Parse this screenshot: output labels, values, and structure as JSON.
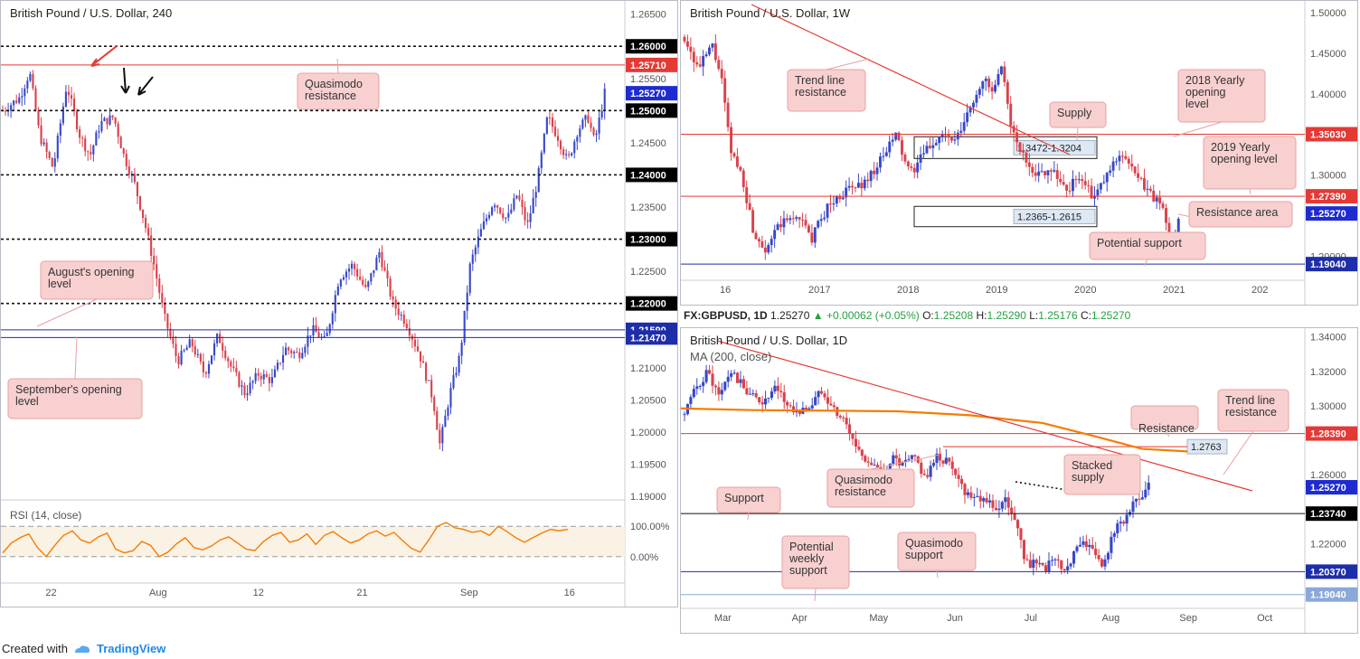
{
  "app": {
    "created_with": "Created with",
    "brand": "TradingView"
  },
  "colors": {
    "bull": "#3848c8",
    "bear": "#d8424c",
    "resistance_red": "#e53935",
    "blue_level": "#1e2da8",
    "rsi": "#f57c00",
    "ma": "#f57c00",
    "callout_fill": "#f8d0d0",
    "callout_stroke": "#e8a0a0"
  },
  "chart_data": [
    {
      "id": "h4",
      "type": "candlestick",
      "title": "British Pound / U.S. Dollar, 240",
      "x_ticks": [
        "22",
        "Aug",
        "12",
        "21",
        "Sep",
        "16"
      ],
      "y_ticks": [
        "1.26500",
        "1.25500",
        "1.24500",
        "1.23500",
        "1.22500",
        "1.21000",
        "1.20500",
        "1.20000",
        "1.19500",
        "1.19000"
      ],
      "ylim": [
        1.19,
        1.2665
      ],
      "levels": [
        {
          "value": 1.26,
          "label": "1.26000",
          "style": "dotted"
        },
        {
          "value": 1.2571,
          "label": "1.25710",
          "style": "red"
        },
        {
          "value": 1.2527,
          "label": "1.25270",
          "style": "price"
        },
        {
          "value": 1.25,
          "label": "1.25000",
          "style": "dotted"
        },
        {
          "value": 1.24,
          "label": "1.24000",
          "style": "dotted"
        },
        {
          "value": 1.23,
          "label": "1.23000",
          "style": "dotted"
        },
        {
          "value": 1.22,
          "label": "1.22000",
          "style": "dotted"
        },
        {
          "value": 1.2159,
          "label": "1.21590",
          "style": "blue"
        },
        {
          "value": 1.2147,
          "label": "1.21470",
          "style": "blue"
        }
      ],
      "annotations": [
        "Quasimodo resistance",
        "August's opening level",
        "September's opening level"
      ],
      "path": [
        [
          0,
          1.25
        ],
        [
          0.05,
          1.252
        ],
        [
          0.08,
          1.256
        ],
        [
          0.11,
          1.246
        ],
        [
          0.15,
          1.241
        ],
        [
          0.19,
          1.254
        ],
        [
          0.23,
          1.246
        ],
        [
          0.26,
          1.243
        ],
        [
          0.29,
          1.248
        ],
        [
          0.33,
          1.249
        ],
        [
          0.36,
          1.243
        ],
        [
          0.39,
          1.239
        ],
        [
          0.42,
          1.233
        ],
        [
          0.45,
          1.226
        ],
        [
          0.48,
          1.218
        ],
        [
          0.52,
          1.211
        ],
        [
          0.56,
          1.214
        ],
        [
          0.6,
          1.209
        ],
        [
          0.64,
          1.215
        ],
        [
          0.68,
          1.21
        ],
        [
          0.72,
          1.206
        ],
        [
          0.76,
          1.209
        ],
        [
          0.8,
          1.208
        ],
        [
          0.84,
          1.213
        ],
        [
          0.88,
          1.212
        ],
        [
          0.92,
          1.216
        ],
        [
          0.96,
          1.214
        ],
        [
          1.0,
          1.224
        ],
        [
          1.04,
          1.226
        ],
        [
          1.08,
          1.222
        ],
        [
          1.12,
          1.228
        ],
        [
          1.16,
          1.22
        ],
        [
          1.2,
          1.217
        ],
        [
          1.24,
          1.212
        ],
        [
          1.28,
          1.205
        ],
        [
          1.3,
          1.198
        ],
        [
          1.33,
          1.206
        ],
        [
          1.36,
          1.212
        ],
        [
          1.39,
          1.226
        ],
        [
          1.42,
          1.231
        ],
        [
          1.46,
          1.236
        ],
        [
          1.5,
          1.233
        ],
        [
          1.53,
          1.237
        ],
        [
          1.56,
          1.232
        ],
        [
          1.59,
          1.239
        ],
        [
          1.62,
          1.249
        ],
        [
          1.65,
          1.246
        ],
        [
          1.68,
          1.242
        ],
        [
          1.71,
          1.247
        ],
        [
          1.74,
          1.249
        ],
        [
          1.76,
          1.245
        ],
        [
          1.79,
          1.2527
        ]
      ],
      "x_range": [
        0,
        1.85
      ]
    },
    {
      "id": "rsi",
      "type": "line",
      "title": "RSI (14, close)",
      "y_ticks": [
        "100.00%",
        "0.00%"
      ],
      "band": [
        70,
        30
      ],
      "values": [
        35,
        48,
        55,
        60,
        42,
        30,
        45,
        58,
        64,
        52,
        48,
        56,
        61,
        40,
        35,
        38,
        50,
        45,
        30,
        36,
        47,
        55,
        42,
        39,
        44,
        52,
        56,
        48,
        40,
        38,
        50,
        58,
        62,
        49,
        52,
        60,
        46,
        58,
        63,
        55,
        48,
        52,
        60,
        64,
        57,
        62,
        51,
        41,
        36,
        52,
        70,
        75,
        68,
        66,
        62,
        64,
        58,
        70,
        63,
        55,
        49,
        55,
        61,
        66,
        64,
        66
      ],
      "ylim": [
        0,
        100
      ]
    },
    {
      "id": "w1",
      "type": "candlestick",
      "title": "British Pound / U.S. Dollar, 1W",
      "x_ticks": [
        "16",
        "2017",
        "2018",
        "2019",
        "2020",
        "2021",
        "202"
      ],
      "y_ticks": [
        "1.50000",
        "1.45000",
        "1.40000",
        "1.35000",
        "1.30000",
        "1.25000",
        "1.20000"
      ],
      "ylim": [
        1.175,
        1.51
      ],
      "levels": [
        {
          "value": 1.3503,
          "label": "1.35030",
          "style": "red"
        },
        {
          "value": 1.2739,
          "label": "1.27390",
          "style": "red"
        },
        {
          "value": 1.2527,
          "label": "1.25270",
          "style": "price"
        },
        {
          "value": 1.1904,
          "label": "1.19040",
          "style": "blue"
        }
      ],
      "zones": [
        {
          "top": 1.3472,
          "bottom": 1.3204,
          "label": "1.3472-1.3204"
        },
        {
          "top": 1.2615,
          "bottom": 1.2365,
          "label": "1.2365-1.2615"
        }
      ],
      "annotations": [
        "Trend line resistance",
        "2018 Yearly opening level",
        "Supply",
        "2019 Yearly opening level",
        "Resistance area",
        "Potential support"
      ],
      "path": [
        [
          0,
          1.47
        ],
        [
          0.06,
          1.43
        ],
        [
          0.12,
          1.46
        ],
        [
          0.16,
          1.42
        ],
        [
          0.2,
          1.33
        ],
        [
          0.25,
          1.3
        ],
        [
          0.3,
          1.23
        ],
        [
          0.35,
          1.21
        ],
        [
          0.42,
          1.24
        ],
        [
          0.5,
          1.25
        ],
        [
          0.55,
          1.22
        ],
        [
          0.62,
          1.26
        ],
        [
          0.7,
          1.28
        ],
        [
          0.78,
          1.29
        ],
        [
          0.86,
          1.32
        ],
        [
          0.92,
          1.35
        ],
        [
          0.98,
          1.3
        ],
        [
          1.05,
          1.33
        ],
        [
          1.12,
          1.35
        ],
        [
          1.18,
          1.34
        ],
        [
          1.24,
          1.38
        ],
        [
          1.3,
          1.42
        ],
        [
          1.34,
          1.4
        ],
        [
          1.38,
          1.43
        ],
        [
          1.43,
          1.35
        ],
        [
          1.48,
          1.32
        ],
        [
          1.54,
          1.3
        ],
        [
          1.6,
          1.31
        ],
        [
          1.66,
          1.28
        ],
        [
          1.72,
          1.3
        ],
        [
          1.78,
          1.27
        ],
        [
          1.84,
          1.3
        ],
        [
          1.9,
          1.33
        ],
        [
          1.96,
          1.3
        ],
        [
          2.02,
          1.28
        ],
        [
          2.08,
          1.26
        ],
        [
          2.12,
          1.21
        ],
        [
          2.15,
          1.25
        ]
      ],
      "x_range": [
        0,
        2.7
      ]
    },
    {
      "id": "d1",
      "type": "candlestick",
      "title": "British Pound / U.S. Dollar, 1D",
      "ma_label": "MA (200, close)",
      "symbol": "FX:GBPUSD, 1D",
      "price": "1.25270",
      "change": "+0.00062 (+0.05%)",
      "open": "1.25208",
      "high": "1.25290",
      "low": "1.25176",
      "close": "1.25270",
      "x_ticks": [
        "Mar",
        "Apr",
        "May",
        "Jun",
        "Jul",
        "Aug",
        "Sep",
        "Oct"
      ],
      "y_ticks": [
        "1.34000",
        "1.32000",
        "1.30000",
        "1.26000",
        "1.22000"
      ],
      "ylim": [
        1.185,
        1.343
      ],
      "levels": [
        {
          "value": 1.2839,
          "label": "1.28390",
          "style": "red"
        },
        {
          "value": 1.2527,
          "label": "1.25270",
          "style": "price"
        },
        {
          "value": 1.2374,
          "label": "1.23740",
          "style": "black"
        },
        {
          "value": 1.2037,
          "label": "1.20370",
          "style": "blue"
        },
        {
          "value": 1.1904,
          "label": "1.19040",
          "style": "lightblue"
        }
      ],
      "tag": {
        "value": 1.2763,
        "label": "1.2763"
      },
      "annotations": [
        "Resistance",
        "Trend line resistance",
        "Quasimodo resistance",
        "Stacked supply",
        "Support",
        "Potential weekly support",
        "Quasimodo support"
      ],
      "path": [
        [
          0,
          1.295
        ],
        [
          0.05,
          1.31
        ],
        [
          0.1,
          1.32
        ],
        [
          0.15,
          1.305
        ],
        [
          0.2,
          1.32
        ],
        [
          0.26,
          1.31
        ],
        [
          0.3,
          1.305
        ],
        [
          0.35,
          1.302
        ],
        [
          0.4,
          1.31
        ],
        [
          0.45,
          1.3
        ],
        [
          0.5,
          1.296
        ],
        [
          0.55,
          1.3
        ],
        [
          0.6,
          1.31
        ],
        [
          0.64,
          1.3
        ],
        [
          0.7,
          1.29
        ],
        [
          0.75,
          1.275
        ],
        [
          0.8,
          1.268
        ],
        [
          0.86,
          1.26
        ],
        [
          0.9,
          1.27
        ],
        [
          0.95,
          1.265
        ],
        [
          1.0,
          1.27
        ],
        [
          1.05,
          1.258
        ],
        [
          1.1,
          1.27
        ],
        [
          1.14,
          1.268
        ],
        [
          1.18,
          1.262
        ],
        [
          1.22,
          1.25
        ],
        [
          1.28,
          1.248
        ],
        [
          1.32,
          1.245
        ],
        [
          1.36,
          1.24
        ],
        [
          1.4,
          1.245
        ],
        [
          1.44,
          1.235
        ],
        [
          1.48,
          1.21
        ],
        [
          1.52,
          1.208
        ],
        [
          1.56,
          1.205
        ],
        [
          1.6,
          1.21
        ],
        [
          1.66,
          1.205
        ],
        [
          1.7,
          1.215
        ],
        [
          1.74,
          1.222
        ],
        [
          1.78,
          1.215
        ],
        [
          1.82,
          1.205
        ],
        [
          1.86,
          1.225
        ],
        [
          1.9,
          1.232
        ],
        [
          1.94,
          1.24
        ],
        [
          1.98,
          1.245
        ],
        [
          2.02,
          1.2527
        ]
      ],
      "x_range": [
        0,
        2.7
      ]
    }
  ]
}
